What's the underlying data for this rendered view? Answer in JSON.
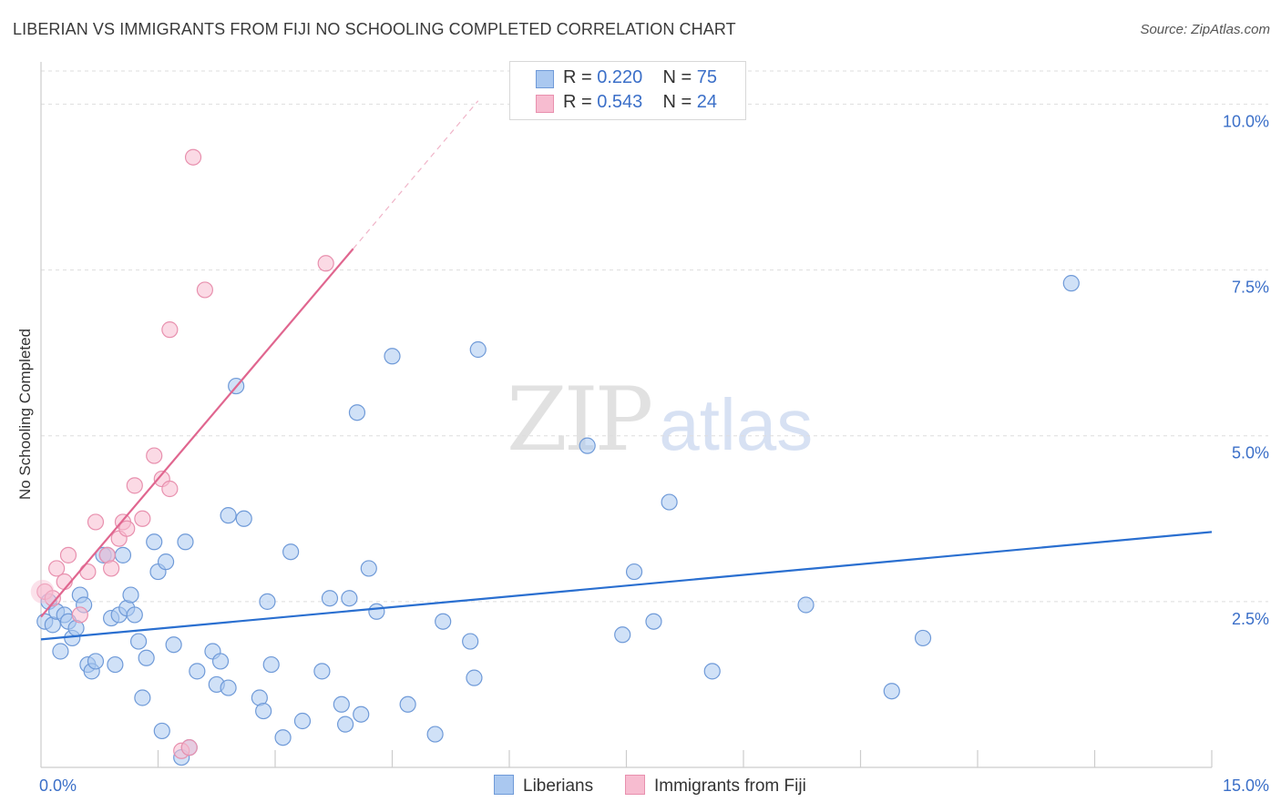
{
  "title": "LIBERIAN VS IMMIGRANTS FROM FIJI NO SCHOOLING COMPLETED CORRELATION CHART",
  "source": "Source: ZipAtlas.com",
  "watermark": {
    "zip": "ZIP",
    "atlas": "atlas"
  },
  "legend": {
    "rows": [
      {
        "r_label": "R = ",
        "r": "0.220",
        "n_label": "N = ",
        "n": "75"
      },
      {
        "r_label": "R = ",
        "r": "0.543",
        "n_label": "N = ",
        "n": "24"
      }
    ]
  },
  "colors": {
    "blue_fill": "#aac8f0",
    "blue_stroke": "#6f9ad8",
    "blue_line": "#2a6fd0",
    "pink_fill": "#f7bcd0",
    "pink_stroke": "#e890ae",
    "pink_line": "#e0668f",
    "tick_label": "#3b6fc8",
    "grid": "#dedede"
  },
  "chart_data": {
    "type": "scatter",
    "title": "LIBERIAN VS IMMIGRANTS FROM FIJI NO SCHOOLING COMPLETED CORRELATION CHART",
    "xlabel": "",
    "ylabel": "No Schooling Completed",
    "xlim": [
      0,
      15
    ],
    "ylim": [
      0,
      10.5
    ],
    "x_tick_labels": [
      "0.0%",
      "15.0%"
    ],
    "y_ticks": [
      2.5,
      5.0,
      7.5,
      10.0
    ],
    "y_tick_labels": [
      "2.5%",
      "5.0%",
      "7.5%",
      "10.0%"
    ],
    "grid": true,
    "legend_position": "bottom",
    "series": [
      {
        "name": "Liberians",
        "color": "#aac8f0",
        "points": [
          [
            0.05,
            2.2
          ],
          [
            0.1,
            2.5
          ],
          [
            0.15,
            2.15
          ],
          [
            0.2,
            2.35
          ],
          [
            0.25,
            1.75
          ],
          [
            0.3,
            2.3
          ],
          [
            0.35,
            2.2
          ],
          [
            0.4,
            1.95
          ],
          [
            0.5,
            2.6
          ],
          [
            0.55,
            2.45
          ],
          [
            0.6,
            1.55
          ],
          [
            0.65,
            1.45
          ],
          [
            0.7,
            1.6
          ],
          [
            0.8,
            3.2
          ],
          [
            0.85,
            3.2
          ],
          [
            0.9,
            2.25
          ],
          [
            0.95,
            1.55
          ],
          [
            1.0,
            2.3
          ],
          [
            1.05,
            3.2
          ],
          [
            1.1,
            2.4
          ],
          [
            1.15,
            2.6
          ],
          [
            1.2,
            2.3
          ],
          [
            1.25,
            1.9
          ],
          [
            1.3,
            1.05
          ],
          [
            1.35,
            1.65
          ],
          [
            1.45,
            3.4
          ],
          [
            1.5,
            2.95
          ],
          [
            1.55,
            0.55
          ],
          [
            1.6,
            3.1
          ],
          [
            1.7,
            1.85
          ],
          [
            1.8,
            0.15
          ],
          [
            1.85,
            3.4
          ],
          [
            1.9,
            0.3
          ],
          [
            2.0,
            1.45
          ],
          [
            2.2,
            1.75
          ],
          [
            2.25,
            1.25
          ],
          [
            2.3,
            1.6
          ],
          [
            2.4,
            3.8
          ],
          [
            2.4,
            1.2
          ],
          [
            2.5,
            5.75
          ],
          [
            2.6,
            3.75
          ],
          [
            2.8,
            1.05
          ],
          [
            2.85,
            0.85
          ],
          [
            2.9,
            2.5
          ],
          [
            2.95,
            1.55
          ],
          [
            3.1,
            0.45
          ],
          [
            3.2,
            3.25
          ],
          [
            3.35,
            0.7
          ],
          [
            3.6,
            1.45
          ],
          [
            3.7,
            2.55
          ],
          [
            3.85,
            0.95
          ],
          [
            3.9,
            0.65
          ],
          [
            3.95,
            2.55
          ],
          [
            4.05,
            5.35
          ],
          [
            4.1,
            0.8
          ],
          [
            4.2,
            3.0
          ],
          [
            4.3,
            2.35
          ],
          [
            4.5,
            6.2
          ],
          [
            4.7,
            0.95
          ],
          [
            5.05,
            0.5
          ],
          [
            5.15,
            2.2
          ],
          [
            5.5,
            1.9
          ],
          [
            5.55,
            1.35
          ],
          [
            5.6,
            6.3
          ],
          [
            7.0,
            4.85
          ],
          [
            7.45,
            2.0
          ],
          [
            7.6,
            2.95
          ],
          [
            7.85,
            2.2
          ],
          [
            8.05,
            4.0
          ],
          [
            8.6,
            1.45
          ],
          [
            9.8,
            2.45
          ],
          [
            10.9,
            1.15
          ],
          [
            11.3,
            1.95
          ],
          [
            13.2,
            7.3
          ],
          [
            0.45,
            2.1
          ]
        ]
      },
      {
        "name": "Immigrants from Fiji",
        "color": "#f7bcd0",
        "points": [
          [
            0.05,
            2.65
          ],
          [
            0.15,
            2.55
          ],
          [
            0.2,
            3.0
          ],
          [
            0.3,
            2.8
          ],
          [
            0.35,
            3.2
          ],
          [
            0.5,
            2.3
          ],
          [
            0.6,
            2.95
          ],
          [
            0.7,
            3.7
          ],
          [
            0.85,
            3.2
          ],
          [
            0.9,
            3.0
          ],
          [
            1.0,
            3.45
          ],
          [
            1.05,
            3.7
          ],
          [
            1.1,
            3.6
          ],
          [
            1.2,
            4.25
          ],
          [
            1.3,
            3.75
          ],
          [
            1.45,
            4.7
          ],
          [
            1.55,
            4.35
          ],
          [
            1.65,
            6.6
          ],
          [
            1.65,
            4.2
          ],
          [
            1.8,
            0.25
          ],
          [
            1.95,
            9.2
          ],
          [
            2.1,
            7.2
          ],
          [
            3.65,
            7.6
          ],
          [
            1.9,
            0.3
          ]
        ]
      }
    ],
    "trend_lines": [
      {
        "name": "Liberians",
        "x": [
          0,
          15
        ],
        "y": [
          1.93,
          3.55
        ]
      },
      {
        "name": "Immigrants from Fiji",
        "x": [
          0,
          4.0
        ],
        "y": [
          2.27,
          7.82
        ],
        "dashed_extension_x": [
          4.0,
          5.6
        ],
        "dashed_extension_y": [
          7.82,
          10.05
        ]
      }
    ]
  }
}
